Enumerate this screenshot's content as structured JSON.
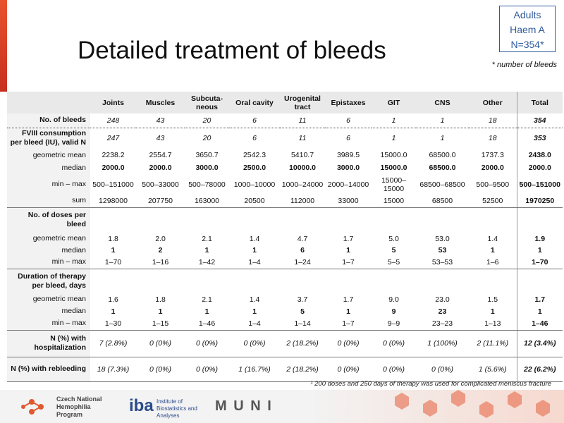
{
  "header": {
    "title": "Detailed treatment of bleeds",
    "badge": [
      "Adults",
      "Haem A",
      "N=354*"
    ],
    "badge_note": "* number of bleeds"
  },
  "table": {
    "columns": [
      "Joints",
      "Muscles",
      "Subcuta-neous",
      "Oral cavity",
      "Urogenital tract",
      "Epistaxes",
      "GIT",
      "CNS",
      "Other",
      "Total"
    ],
    "rows": [
      {
        "label": "No. of bleeds",
        "cells": [
          "248",
          "43",
          "20",
          "6",
          "11",
          "6",
          "1",
          "1",
          "18",
          "354"
        ]
      },
      {
        "label": "FVIII consumption per bleed (IU), valid N",
        "cells": [
          "247",
          "43",
          "20",
          "6",
          "11",
          "6",
          "1",
          "1",
          "18",
          "353"
        ]
      },
      {
        "label": "geometric mean",
        "cells": [
          "2238.2",
          "2554.7",
          "3650.7",
          "2542.3",
          "5410.7",
          "3989.5",
          "15000.0",
          "68500.0",
          "1737.3",
          "2438.0"
        ]
      },
      {
        "label": "median",
        "cells": [
          "2000.0",
          "2000.0",
          "3000.0",
          "2500.0",
          "10000.0",
          "3000.0",
          "15000.0",
          "68500.0",
          "2000.0",
          "2000.0"
        ]
      },
      {
        "label": "min – max",
        "cells": [
          "500–151000",
          "500–33000",
          "500–78000",
          "1000–10000",
          "1000–24000",
          "2000–14000",
          "15000–15000",
          "68500–68500",
          "500–9500",
          "500–151000"
        ]
      },
      {
        "label": "sum",
        "cells": [
          "1298000",
          "207750",
          "163000",
          "20500",
          "112000",
          "33000",
          "15000",
          "68500",
          "52500",
          "1970250"
        ]
      },
      {
        "label": "No. of doses per bleed"
      },
      {
        "label": "geometric mean",
        "cells": [
          "1.8",
          "2.0",
          "2.1",
          "1.4",
          "4.7",
          "1.7",
          "5.0",
          "53.0",
          "1.4",
          "1.9"
        ]
      },
      {
        "label": "median",
        "cells": [
          "1",
          "2",
          "1",
          "1",
          "6",
          "1",
          "5",
          "53",
          "1",
          "1"
        ]
      },
      {
        "label": "min – max",
        "cells": [
          "1–70",
          "1–16",
          "1–42",
          "1–4",
          "1–24",
          "1–7",
          "5–5",
          "53–53",
          "1–6",
          "1–70"
        ]
      },
      {
        "label": "Duration of therapy per bleed, days"
      },
      {
        "label": "geometric mean",
        "cells": [
          "1.6",
          "1.8",
          "2.1",
          "1.4",
          "3.7",
          "1.7",
          "9.0",
          "23.0",
          "1.5",
          "1.7"
        ]
      },
      {
        "label": "median",
        "cells": [
          "1",
          "1",
          "1",
          "1",
          "5",
          "1",
          "9",
          "23",
          "1",
          "1"
        ]
      },
      {
        "label": "min – max",
        "cells": [
          "1–30",
          "1–15",
          "1–46",
          "1–4",
          "1–14",
          "1–7",
          "9–9",
          "23–23",
          "1–13",
          "1–46"
        ]
      },
      {
        "label": "N (%) with hospitalization",
        "cells": [
          "7 (2.8%)",
          "0 (0%)",
          "0 (0%)",
          "0 (0%)",
          "2 (18.2%)",
          "0 (0%)",
          "0 (0%)",
          "1 (100%)",
          "2 (11.1%)",
          "12 (3.4%)"
        ]
      },
      {
        "label": "N (%) with rebleeding",
        "cells": [
          "18 (7.3%)",
          "0 (0%)",
          "0 (0%)",
          "1 (16.7%)",
          "2 (18.2%)",
          "0 (0%)",
          "0 (0%)",
          "0 (0%)",
          "1 (5.6%)",
          "22 (6.2%)"
        ]
      }
    ]
  },
  "footnote": "¹ 200 doses and 250 days of therapy was used for complicated meniscus fracture",
  "footer": {
    "org": "Czech National Hemophilia Program",
    "iba": "iba",
    "iba_sub": "Institute of Biostatistics and Analyses",
    "muni": "M U N I"
  }
}
